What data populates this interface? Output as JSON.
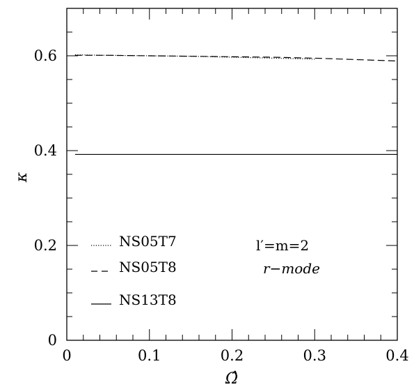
{
  "chart_data": {
    "type": "line",
    "title": "",
    "xlabel": "Ω̂",
    "ylabel": "κ",
    "xlim": [
      0,
      0.4
    ],
    "ylim": [
      0,
      0.7
    ],
    "xticks_major": [
      0,
      0.1,
      0.2,
      0.3,
      0.4
    ],
    "xtick_labels": [
      "0",
      "0.1",
      "0.2",
      "0.3",
      "0.4"
    ],
    "yticks_major": [
      0,
      0.2,
      0.4,
      0.6
    ],
    "ytick_labels": [
      "0",
      "0.2",
      "0.4",
      "0.6"
    ],
    "grid": false,
    "legend_position": "lower-left",
    "series": [
      {
        "name": "NS05T7",
        "style": "dotted",
        "x": [
          0.01,
          0.05,
          0.1,
          0.15,
          0.2,
          0.25,
          0.3
        ],
        "y": [
          0.602,
          0.601,
          0.6,
          0.599,
          0.597,
          0.595,
          0.593
        ]
      },
      {
        "name": "NS05T8",
        "style": "dashed",
        "x": [
          0.01,
          0.05,
          0.1,
          0.15,
          0.2,
          0.25,
          0.3,
          0.35,
          0.4
        ],
        "y": [
          0.601,
          0.601,
          0.6,
          0.599,
          0.598,
          0.597,
          0.595,
          0.592,
          0.589
        ]
      },
      {
        "name": "NS13T8",
        "style": "solid",
        "x": [
          0.01,
          0.1,
          0.2,
          0.3,
          0.4
        ],
        "y": [
          0.392,
          0.392,
          0.392,
          0.392,
          0.392
        ]
      }
    ],
    "annotations": [
      "l′=m=2",
      "r−mode"
    ]
  }
}
